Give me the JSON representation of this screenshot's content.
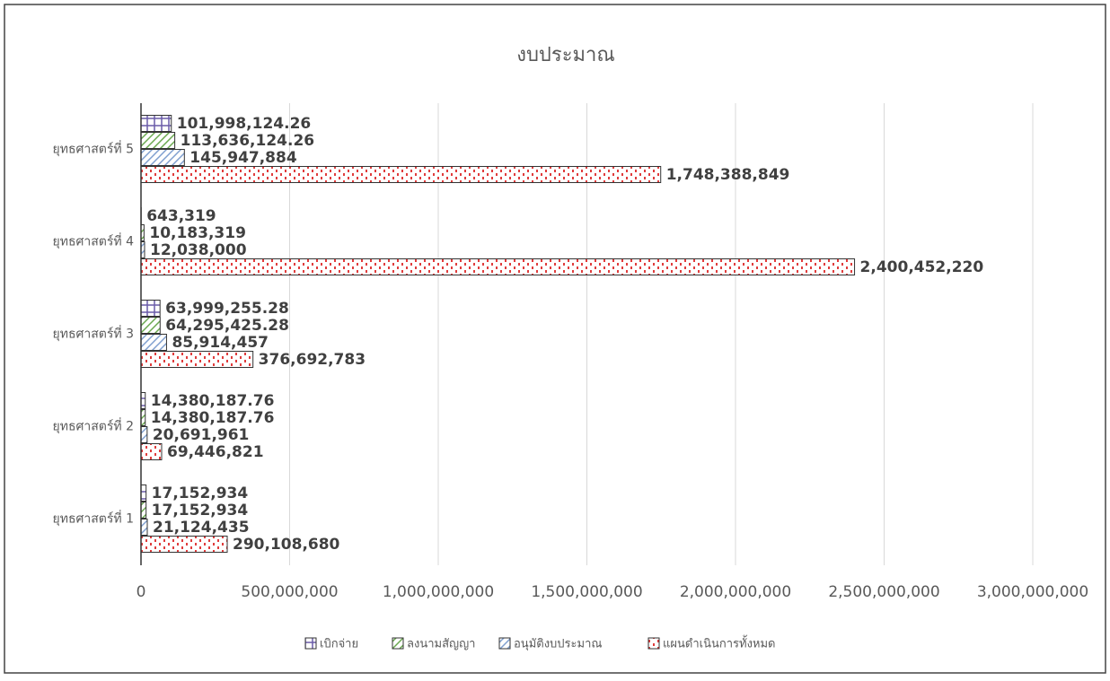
{
  "chart_data": {
    "type": "barh",
    "title": "งบประมาณ",
    "categories": [
      "ยุทธศาสตร์ที่ 1",
      "ยุทธศาสตร์ที่ 2",
      "ยุทธศาสตร์ที่ 3",
      "ยุทธศาสตร์ที่ 4",
      "ยุทธศาสตร์ที่ 5"
    ],
    "series": [
      {
        "name": "เบิกจ่าย",
        "color": "#6a5ca8",
        "pattern": "grid",
        "values": [
          17152934,
          14380187.76,
          63999255.28,
          643319,
          101998124.26
        ],
        "value_labels": [
          "17,152,934",
          "14,380,187.76",
          "63,999,255.28",
          "643,319",
          "101,998,124.26"
        ]
      },
      {
        "name": "ลงนามสัญญา",
        "color": "#6aa84f",
        "pattern": "diagonal",
        "values": [
          17152934,
          14380187.76,
          64295425.28,
          10183319,
          113636124.26
        ],
        "value_labels": [
          "17,152,934",
          "14,380,187.76",
          "64,295,425.28",
          "10,183,319",
          "113,636,124.26"
        ]
      },
      {
        "name": "อนุมัติงบประมาณ",
        "color": "#7f9fcf",
        "pattern": "diagonal",
        "values": [
          21124435,
          20691961,
          85914457,
          12038000,
          145947884
        ],
        "value_labels": [
          "21,124,435",
          "20,691,961",
          "85,914,457",
          "12,038,000",
          "145,947,884"
        ]
      },
      {
        "name": "แผนดำเนินการทั้งหมด",
        "color": "#e03c3c",
        "pattern": "brick",
        "values": [
          290108680,
          69446821,
          376692783,
          2400452220,
          1748388849
        ],
        "value_labels": [
          "290,108,680",
          "69,446,821",
          "376,692,783",
          "2,400,452,220",
          "1,748,388,849"
        ]
      }
    ],
    "xlim": [
      0,
      3000000000
    ],
    "xticks": [
      0,
      {
        "value": 500000000,
        "label": "500,000,000"
      },
      {
        "value": 1000000000,
        "label": "1,000,000,000"
      },
      {
        "value": 1500000000,
        "label": "1,500,000,000"
      },
      {
        "value": 2000000000,
        "label": "2,000,000,000"
      },
      {
        "value": 2500000000,
        "label": "2,500,000,000"
      },
      {
        "value": 3000000000,
        "label": "3,000,000,000"
      }
    ],
    "grid": true,
    "legend": "bottom"
  }
}
